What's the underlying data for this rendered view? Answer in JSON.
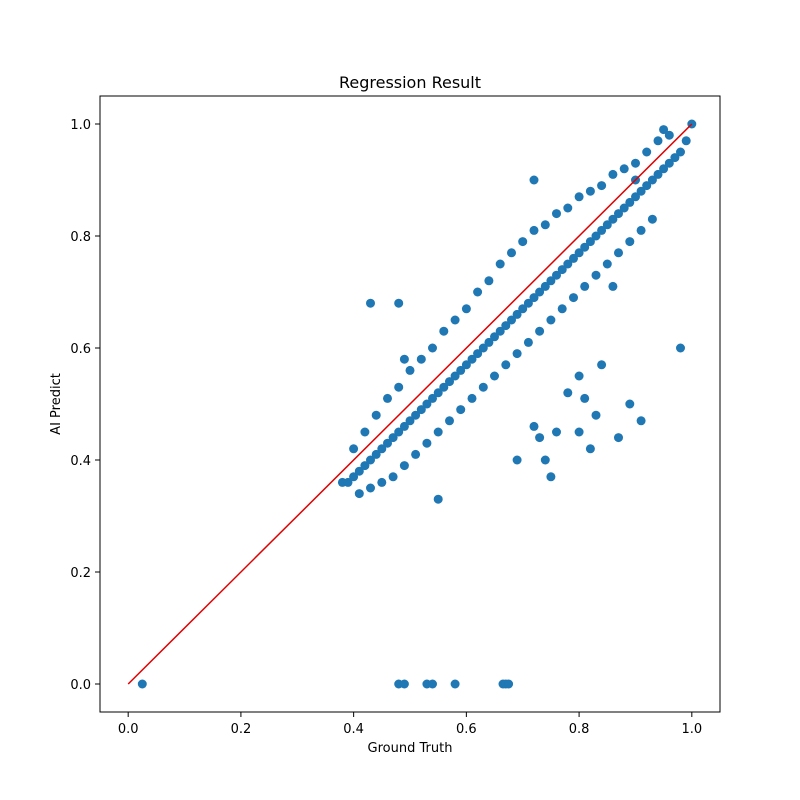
{
  "chart_data": {
    "type": "scatter",
    "title": "Regression Result",
    "xlabel": "Ground Truth",
    "ylabel": "AI Predict",
    "xlim": [
      -0.05,
      1.05
    ],
    "ylim": [
      -0.05,
      1.05
    ],
    "xticks": [
      "0.0",
      "0.2",
      "0.4",
      "0.6",
      "0.8",
      "1.0"
    ],
    "yticks": [
      "0.0",
      "0.2",
      "0.4",
      "0.6",
      "0.8",
      "1.0"
    ],
    "grid": false,
    "point_color": "#1f77b4",
    "line_color": "#e00000",
    "reference_line": {
      "x": [
        0.0,
        1.0
      ],
      "y": [
        0.0,
        1.0
      ]
    },
    "series": [
      {
        "x": [
          0.38,
          0.39,
          0.4,
          0.41,
          0.42,
          0.43,
          0.44,
          0.45,
          0.46,
          0.47,
          0.48,
          0.49,
          0.5,
          0.51,
          0.52,
          0.53,
          0.54,
          0.55,
          0.56,
          0.57,
          0.58,
          0.59,
          0.6,
          0.61,
          0.62,
          0.63,
          0.64,
          0.65,
          0.66,
          0.67,
          0.68,
          0.69,
          0.7,
          0.71,
          0.72,
          0.73,
          0.74,
          0.75,
          0.76,
          0.77,
          0.78,
          0.79,
          0.8,
          0.81,
          0.82,
          0.83,
          0.84,
          0.85,
          0.86,
          0.87,
          0.88,
          0.89,
          0.9,
          0.91,
          0.92,
          0.93,
          0.94,
          0.95,
          0.96,
          0.97,
          0.98,
          0.99,
          1.0,
          0.4,
          0.42,
          0.44,
          0.46,
          0.48,
          0.5,
          0.52,
          0.54,
          0.56,
          0.58,
          0.6,
          0.62,
          0.64,
          0.66,
          0.68,
          0.7,
          0.72,
          0.74,
          0.76,
          0.78,
          0.8,
          0.82,
          0.84,
          0.86,
          0.88,
          0.9,
          0.92,
          0.94,
          0.41,
          0.43,
          0.45,
          0.47,
          0.49,
          0.51,
          0.53,
          0.55,
          0.57,
          0.59,
          0.61,
          0.63,
          0.65,
          0.67,
          0.69,
          0.71,
          0.73,
          0.75,
          0.77,
          0.79,
          0.81,
          0.83,
          0.85,
          0.87,
          0.89,
          0.91,
          0.93,
          0.43,
          0.48,
          0.49,
          0.55,
          0.72,
          0.96,
          0.98,
          0.95,
          0.91,
          0.9,
          0.69,
          0.72,
          0.76,
          0.8,
          0.83,
          0.87,
          0.89,
          0.75,
          0.74,
          0.73,
          0.82,
          0.86,
          0.84,
          0.8,
          0.81,
          0.78,
          0.025,
          0.48,
          0.49,
          0.53,
          0.54,
          0.58,
          0.665,
          0.67,
          0.675
        ],
        "y": [
          0.36,
          0.36,
          0.37,
          0.38,
          0.39,
          0.4,
          0.41,
          0.42,
          0.43,
          0.44,
          0.45,
          0.46,
          0.47,
          0.48,
          0.49,
          0.5,
          0.51,
          0.52,
          0.53,
          0.54,
          0.55,
          0.56,
          0.57,
          0.58,
          0.59,
          0.6,
          0.61,
          0.62,
          0.63,
          0.64,
          0.65,
          0.66,
          0.67,
          0.68,
          0.69,
          0.7,
          0.71,
          0.72,
          0.73,
          0.74,
          0.75,
          0.76,
          0.77,
          0.78,
          0.79,
          0.8,
          0.81,
          0.82,
          0.83,
          0.84,
          0.85,
          0.86,
          0.87,
          0.88,
          0.89,
          0.9,
          0.91,
          0.92,
          0.93,
          0.94,
          0.95,
          0.97,
          1.0,
          0.42,
          0.45,
          0.48,
          0.51,
          0.53,
          0.56,
          0.58,
          0.6,
          0.63,
          0.65,
          0.67,
          0.7,
          0.72,
          0.75,
          0.77,
          0.79,
          0.81,
          0.82,
          0.84,
          0.85,
          0.87,
          0.88,
          0.89,
          0.91,
          0.92,
          0.93,
          0.95,
          0.97,
          0.34,
          0.35,
          0.36,
          0.37,
          0.39,
          0.41,
          0.43,
          0.45,
          0.47,
          0.49,
          0.51,
          0.53,
          0.55,
          0.57,
          0.59,
          0.61,
          0.63,
          0.65,
          0.67,
          0.69,
          0.71,
          0.73,
          0.75,
          0.77,
          0.79,
          0.81,
          0.83,
          0.68,
          0.68,
          0.58,
          0.33,
          0.9,
          0.98,
          0.6,
          0.99,
          0.47,
          0.9,
          0.4,
          0.46,
          0.45,
          0.45,
          0.48,
          0.44,
          0.5,
          0.37,
          0.4,
          0.44,
          0.42,
          0.71,
          0.57,
          0.55,
          0.51,
          0.52,
          0.0,
          0.0,
          0.0,
          0.0,
          0.0,
          0.0,
          0.0,
          0.0,
          0.0
        ]
      }
    ]
  }
}
